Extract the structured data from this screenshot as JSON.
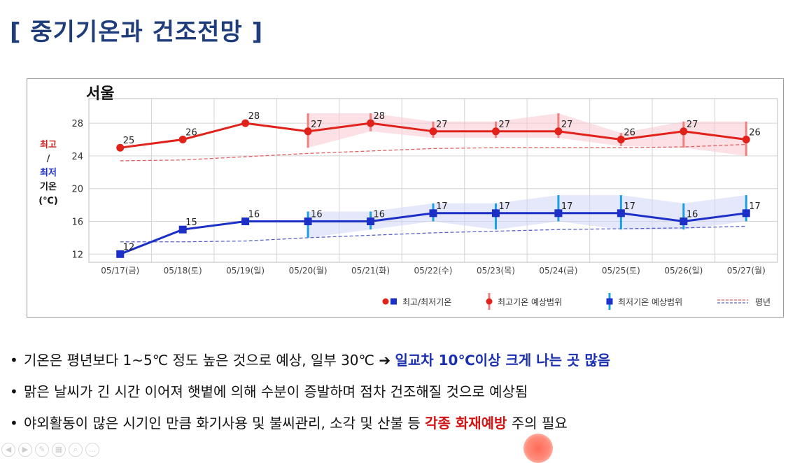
{
  "page_title": "[ 중기기온과 건조전망 ]",
  "chart_data": {
    "type": "line",
    "title": "서울",
    "ylabel_lines": [
      "최고",
      "/",
      "최저",
      "기온",
      "(℃)"
    ],
    "ylim": [
      11,
      31
    ],
    "yticks": [
      12,
      16,
      20,
      24,
      28
    ],
    "categories": [
      "05/17(금)",
      "05/18(토)",
      "05/19(일)",
      "05/20(월)",
      "05/21(화)",
      "05/22(수)",
      "05/23(목)",
      "05/24(금)",
      "05/25(토)",
      "05/26(일)",
      "05/27(월)"
    ],
    "series": [
      {
        "name": "최고/최저기온",
        "kind": "max",
        "color": "#e0221b",
        "values": [
          25,
          26,
          28,
          27,
          28,
          27,
          27,
          27,
          26,
          27,
          26
        ],
        "range_low": [
          null,
          null,
          null,
          25.0,
          27.0,
          26.2,
          26.2,
          26.2,
          25.2,
          25.0,
          24.0
        ],
        "range_high": [
          null,
          null,
          null,
          29.2,
          29.2,
          28.2,
          28.2,
          29.2,
          26.8,
          28.2,
          28.2
        ]
      },
      {
        "name": "최고/최저기온",
        "kind": "min",
        "color": "#1c2fc7",
        "values": [
          12,
          15,
          16,
          16,
          16,
          17,
          17,
          17,
          17,
          16,
          17
        ],
        "range_low": [
          null,
          null,
          null,
          14.0,
          15.0,
          16.0,
          15.0,
          16.0,
          15.0,
          15.0,
          16.0
        ],
        "range_high": [
          null,
          null,
          null,
          17.2,
          17.2,
          18.2,
          18.2,
          19.2,
          19.2,
          18.2,
          19.2
        ]
      }
    ],
    "normal": {
      "name": "평년",
      "max": [
        23.4,
        23.5,
        23.9,
        24.3,
        24.6,
        24.9,
        25.0,
        25.0,
        25.0,
        25.1,
        25.4
      ],
      "min": [
        13.5,
        13.5,
        13.6,
        14.0,
        14.3,
        14.6,
        14.8,
        15.0,
        15.1,
        15.2,
        15.4
      ]
    },
    "legend": [
      "최고/최저기온",
      "최고기온 예상범위",
      "최저기온 예상범위",
      "평년"
    ],
    "legend_position": "bottom",
    "grid": true
  },
  "bullets": [
    {
      "text": "기온은 평년보다 1~5℃ 정도 높은 것으로 예상, 일부 30℃ ➔ ",
      "highlight": "일교차 10℃이상 크게 나는 곳 많음",
      "tail": ""
    },
    {
      "text": "맑은 날씨가 긴 시간 이어져 햇볕에 의해 수분이 증발하며 점차 건조해질 것으로 예상됨",
      "highlight": "",
      "tail": ""
    },
    {
      "text": "야외활동이 많은 시기인 만큼 화기사용 및 불씨관리, 소각 및 산불 등 ",
      "highlight": "각종 화재예방",
      "tail": " 주의 필요"
    }
  ],
  "bullet_glyph": "•"
}
